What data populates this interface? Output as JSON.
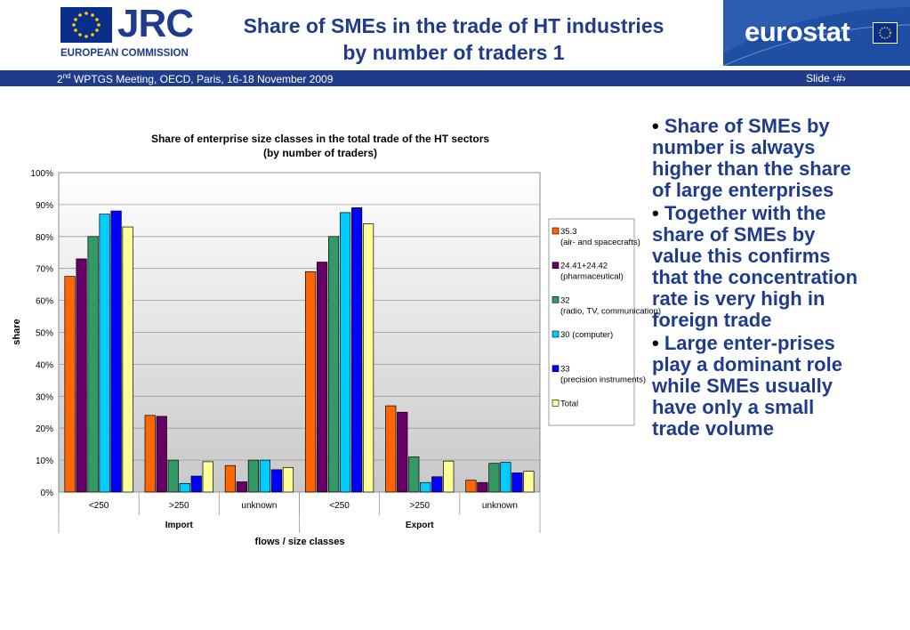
{
  "header": {
    "title_line1": "Share of SMEs in the trade of HT industries",
    "title_line2": "by number of traders 1",
    "jrc_logo_text": "JRC",
    "ec_text": "EUROPEAN COMMISSION",
    "eurostat_text": "eurostat",
    "meeting_sup": "nd",
    "meeting_num": "2",
    "meeting_rest": " WPTGS Meeting, OECD, Paris, 16-18 November 2009",
    "slide_label": "Slide ‹#›"
  },
  "colors": {
    "brand_blue": "#1f3c8c",
    "series": [
      "#ff6600",
      "#660066",
      "#339966",
      "#00ccff",
      "#0000ff",
      "#ffff99"
    ]
  },
  "bullets": [
    "Share of SMEs by number is always higher than the share of large enterprises",
    "Together with the share of SMEs by value this confirms that the concentration rate is very high in foreign trade",
    "Large enter-prises play a dominant role while SMEs usually have only a small trade volume"
  ],
  "chart_data": {
    "type": "bar",
    "title": "Share of enterprise size classes in the total trade of the HT sectors",
    "subtitle": "(by number of traders)",
    "xlabel": "flows / size classes",
    "ylabel": "share",
    "ylim": [
      0,
      100
    ],
    "yticks": [
      "0%",
      "10%",
      "20%",
      "30%",
      "40%",
      "50%",
      "60%",
      "70%",
      "80%",
      "90%",
      "100%"
    ],
    "categories": [
      "<250",
      ">250",
      "unknown",
      "<250",
      ">250",
      "unknown"
    ],
    "groups": [
      {
        "label": "Import"
      },
      {
        "label": "Export"
      }
    ],
    "legend_position": "right",
    "grid": true,
    "series": [
      {
        "name": "35.3 (air- and spacecrafts)",
        "values": [
          67.5,
          24,
          8.3,
          69,
          27,
          3.7
        ]
      },
      {
        "name": "24.41+24.42 (pharmaceutical)",
        "values": [
          73,
          23.7,
          3.2,
          72,
          25,
          3
        ]
      },
      {
        "name": "32 (radio, TV, communication)",
        "values": [
          80,
          10,
          10,
          80,
          11,
          9
        ]
      },
      {
        "name": "30 (computer)",
        "values": [
          87,
          2.7,
          10,
          87.5,
          3,
          9.3
        ]
      },
      {
        "name": "33 (precision instruments)",
        "values": [
          88,
          5,
          7,
          89,
          4.8,
          6
        ]
      },
      {
        "name": "Total",
        "values": [
          83,
          9.5,
          7.7,
          84,
          9.7,
          6.5
        ]
      }
    ]
  }
}
